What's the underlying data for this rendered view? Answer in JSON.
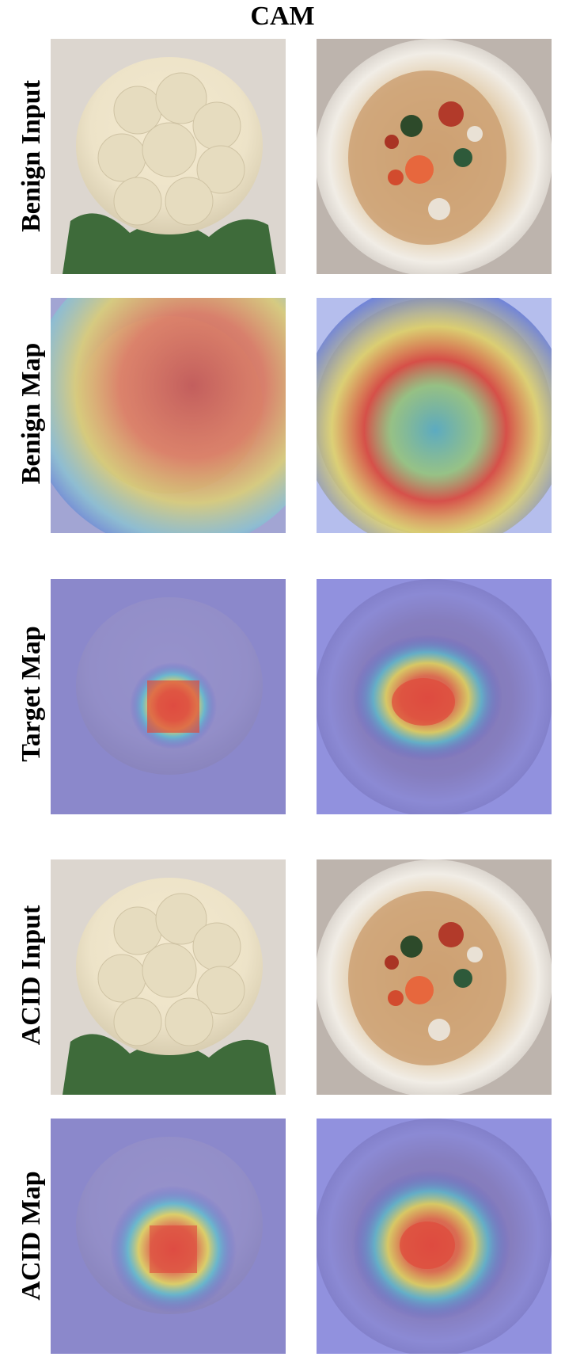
{
  "figure": {
    "title": "CAM",
    "rows": [
      {
        "label": "Benign Input"
      },
      {
        "label": "Benign Map"
      },
      {
        "label": "Target Map"
      },
      {
        "label": "ACID Input"
      },
      {
        "label": "ACID Map"
      }
    ],
    "panels": [
      [
        "cauliflower-photo",
        "seafood-bowl-photo"
      ],
      [
        "cauliflower-benign-heatmap",
        "seafood-bowl-benign-heatmap"
      ],
      [
        "cauliflower-target-heatmap",
        "seafood-bowl-target-heatmap"
      ],
      [
        "cauliflower-acid-photo",
        "seafood-bowl-acid-photo"
      ],
      [
        "cauliflower-acid-heatmap",
        "seafood-bowl-acid-heatmap"
      ]
    ]
  }
}
